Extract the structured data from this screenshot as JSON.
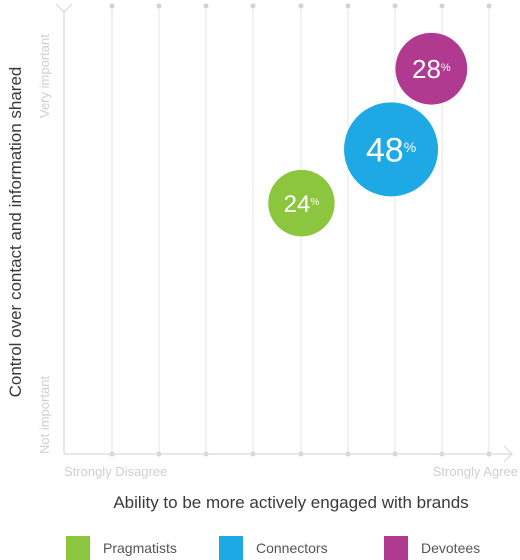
{
  "chart_data": {
    "type": "bubble",
    "title": "",
    "xlabel": "Ability to be more actively engaged with brands",
    "ylabel": "Control over contact and information shared",
    "x_tick_labels": [
      "Strongly Disagree",
      "Strongly Agree"
    ],
    "y_tick_labels": [
      "Not important",
      "Very important"
    ],
    "xlim": [
      0,
      10
    ],
    "ylim": [
      0,
      10
    ],
    "grid": true,
    "legend_position": "bottom",
    "percent_suffix": "%",
    "series": [
      {
        "name": "Pragmatists",
        "x": 5.3,
        "y": 5.6,
        "value": 24,
        "color": "#8cc63f"
      },
      {
        "name": "Connectors",
        "x": 7.3,
        "y": 6.8,
        "value": 48,
        "color": "#1ea9e4"
      },
      {
        "name": "Devotees",
        "x": 8.2,
        "y": 8.6,
        "value": 28,
        "color": "#b03a8f"
      }
    ]
  }
}
